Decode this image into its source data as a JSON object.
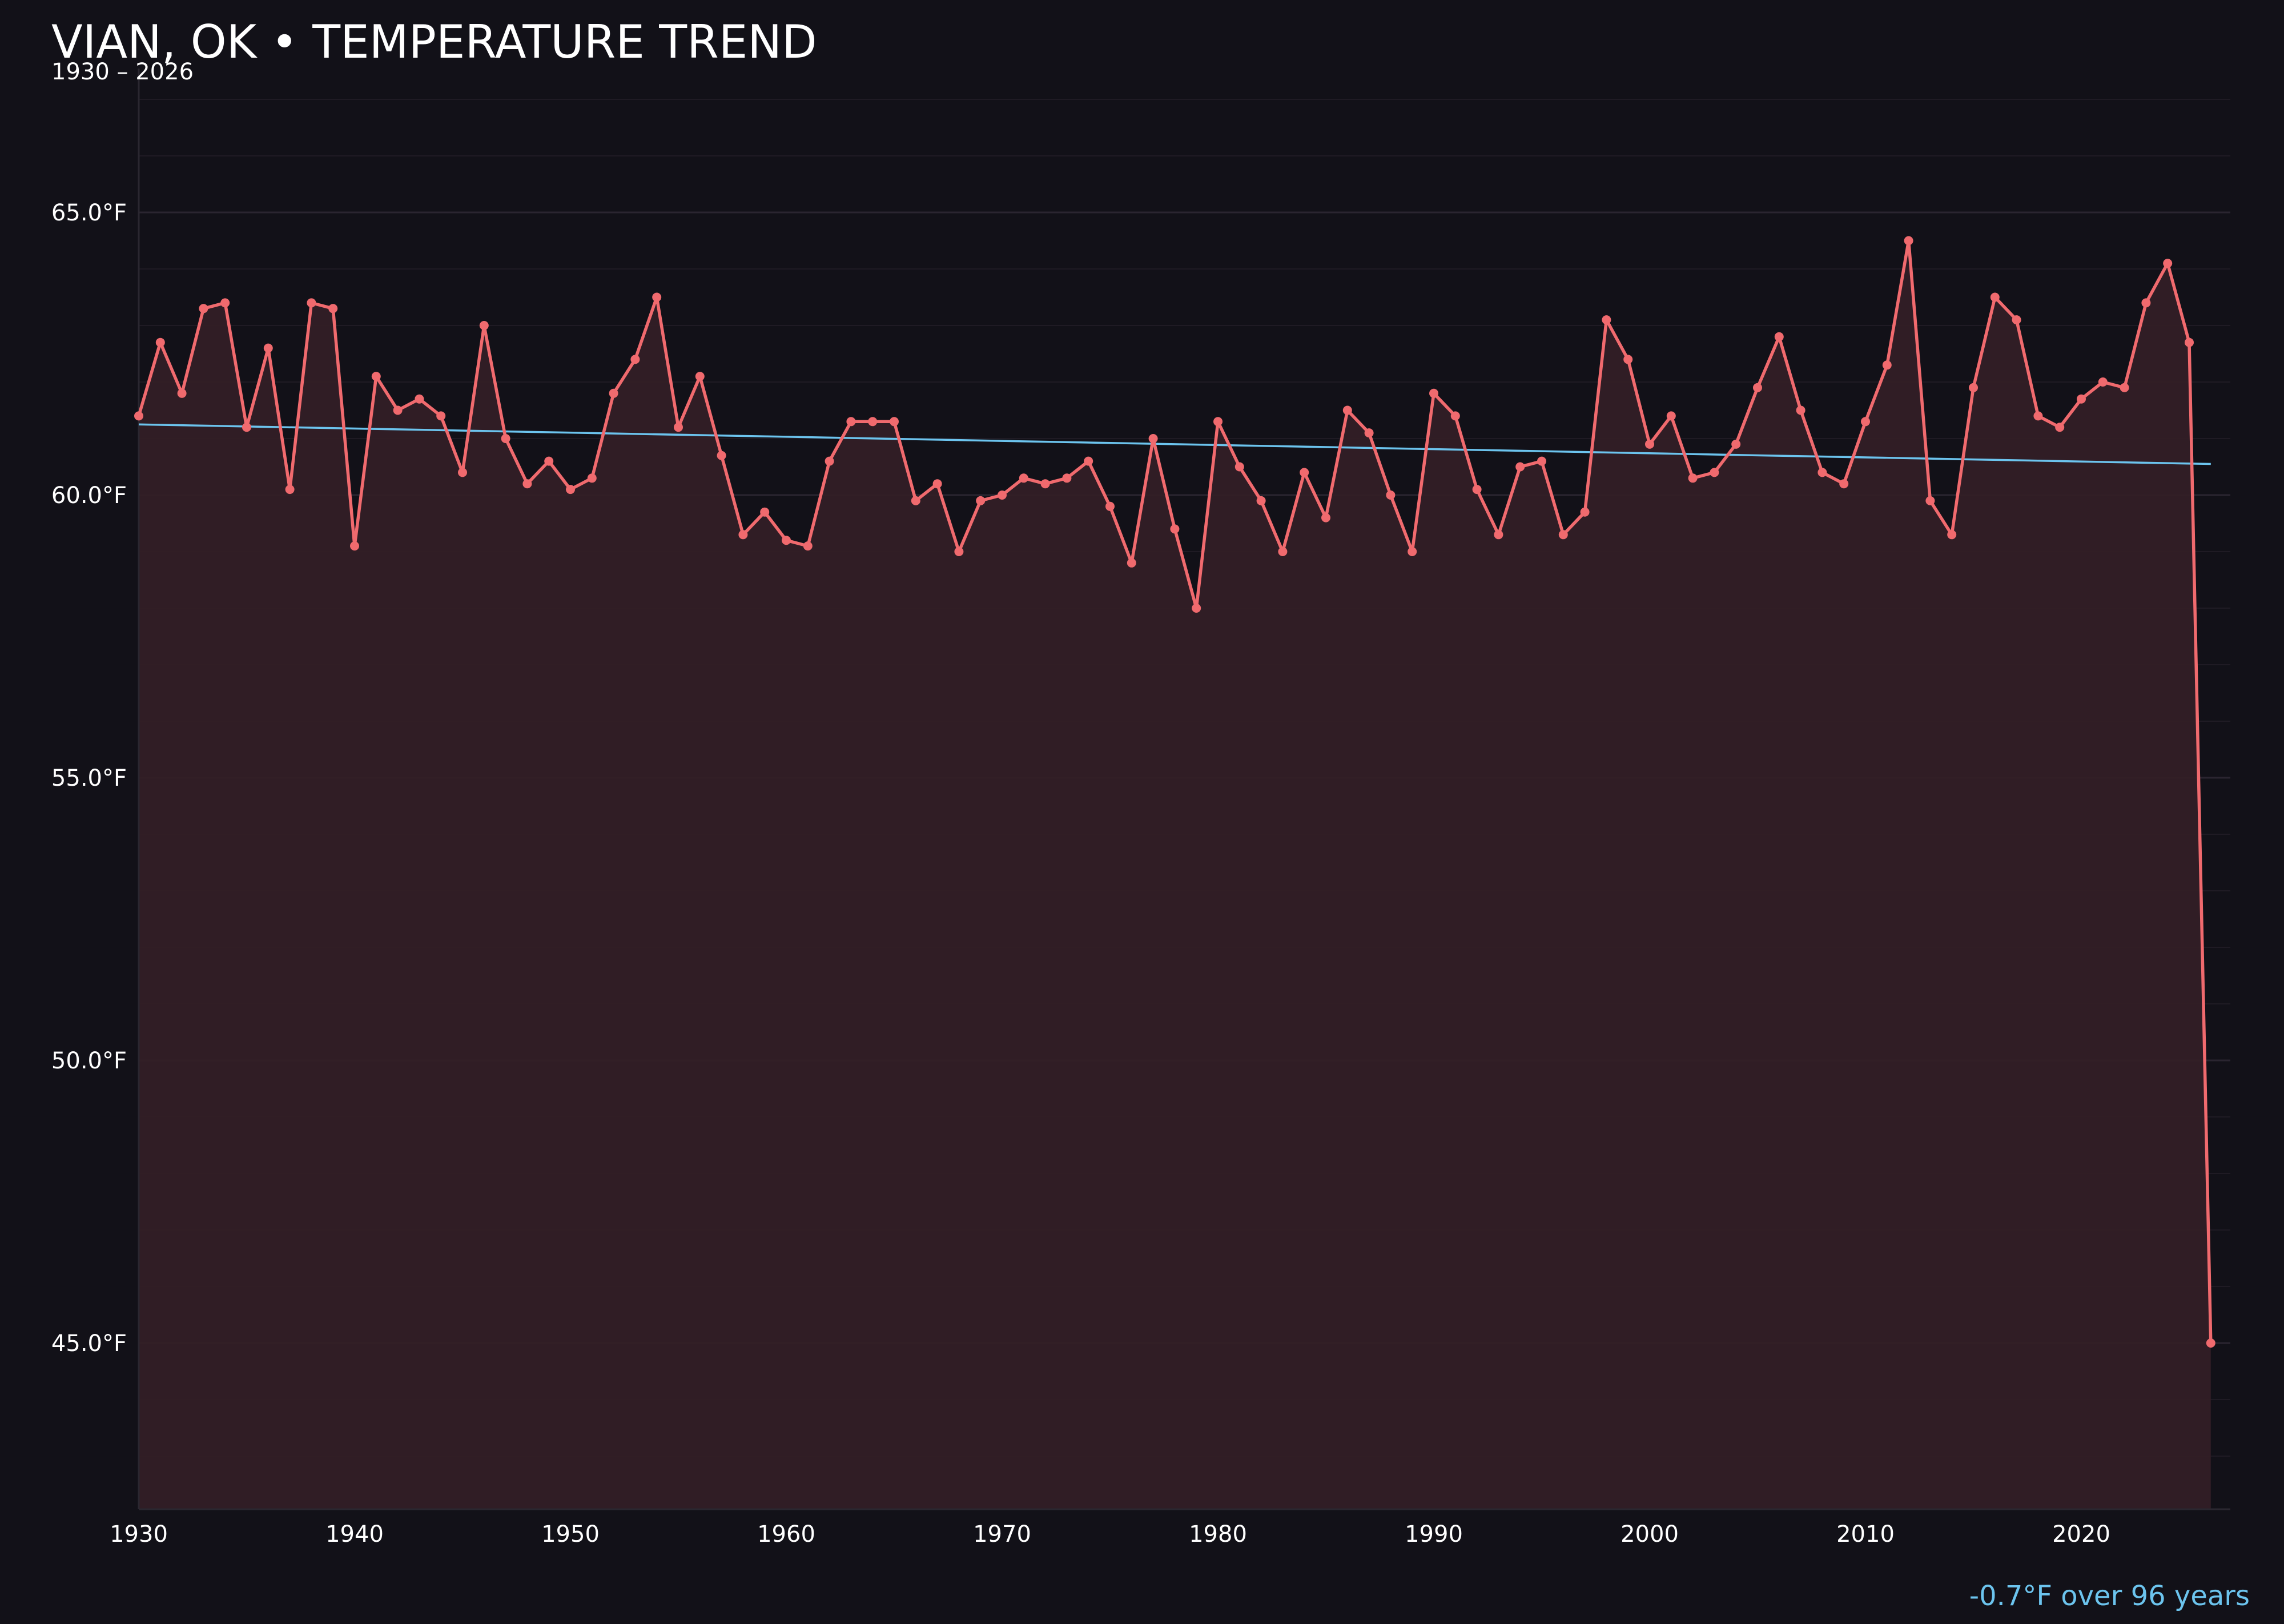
{
  "header": {
    "title": "VIAN, OK • TEMPERATURE TREND",
    "subtitle": "1930 – 2026"
  },
  "footer": {
    "trend_note": "-0.7°F over 96 years"
  },
  "colors": {
    "background": "#121118",
    "series": "#f06a6e",
    "fill": "#331f26",
    "trend": "#6cc4ee",
    "grid": "#231e26",
    "text": "#ffffff"
  },
  "chart_data": {
    "type": "line",
    "title": "VIAN, OK • TEMPERATURE TREND",
    "subtitle": "1930 – 2026",
    "xlabel": "",
    "ylabel": "",
    "xlim": [
      1930,
      2027
    ],
    "ylim": [
      42.0,
      67.0
    ],
    "x_ticks": [
      1930,
      1940,
      1950,
      1960,
      1970,
      1980,
      1990,
      2000,
      2010,
      2020
    ],
    "y_ticks": [
      45.0,
      50.0,
      55.0,
      60.0,
      65.0
    ],
    "y_tick_labels": [
      "45.0°F",
      "50.0°F",
      "55.0°F",
      "60.0°F",
      "65.0°F"
    ],
    "grid": true,
    "area_fill": true,
    "series": [
      {
        "x": [
          1930,
          1931,
          1932,
          1933,
          1934,
          1935,
          1936,
          1937,
          1938,
          1939,
          1940,
          1941,
          1942,
          1943,
          1944,
          1945,
          1946,
          1947,
          1948,
          1949,
          1950,
          1951,
          1952,
          1953,
          1954,
          1955,
          1956,
          1957,
          1958,
          1959,
          1960,
          1961,
          1962,
          1963,
          1964,
          1965,
          1966,
          1967,
          1968,
          1969,
          1970,
          1971,
          1972,
          1973,
          1974,
          1975,
          1976,
          1977,
          1978,
          1979,
          1980,
          1981,
          1982,
          1983,
          1984,
          1985,
          1986,
          1987,
          1988,
          1989,
          1990,
          1991,
          1992,
          1993,
          1994,
          1995,
          1996,
          1997,
          1998,
          1999,
          2000,
          2001,
          2002,
          2003,
          2004,
          2005,
          2006,
          2007,
          2008,
          2009,
          2010,
          2011,
          2012,
          2013,
          2014,
          2015,
          2016,
          2017,
          2018,
          2019,
          2020,
          2021,
          2022,
          2023,
          2024,
          2025,
          2026
        ],
        "values": [
          61.4,
          62.7,
          61.8,
          63.3,
          63.4,
          61.2,
          62.6,
          60.1,
          63.4,
          63.3,
          59.1,
          62.1,
          61.5,
          61.7,
          61.4,
          60.4,
          63.0,
          61.0,
          60.2,
          60.6,
          60.1,
          60.3,
          61.8,
          62.4,
          63.5,
          61.2,
          62.1,
          60.7,
          59.3,
          59.7,
          59.2,
          59.1,
          60.6,
          61.3,
          61.3,
          61.3,
          59.9,
          60.2,
          59.0,
          59.9,
          60.0,
          60.3,
          60.2,
          60.3,
          60.6,
          59.8,
          58.8,
          61.0,
          59.4,
          58.0,
          61.3,
          60.5,
          59.9,
          59.0,
          60.4,
          59.6,
          61.5,
          61.1,
          60.0,
          59.0,
          61.8,
          61.4,
          60.1,
          59.3,
          60.5,
          60.6,
          59.3,
          59.7,
          63.1,
          62.4,
          60.9,
          61.4,
          60.3,
          60.4,
          60.9,
          61.9,
          62.8,
          61.5,
          60.4,
          60.2,
          61.3,
          62.3,
          64.5,
          59.9,
          59.3,
          61.9,
          63.5,
          63.1,
          61.4,
          61.2,
          61.7,
          62.0,
          61.9,
          63.4,
          64.1,
          62.7,
          45.0
        ]
      }
    ],
    "trend_line": {
      "x": [
        1930,
        2026
      ],
      "values": [
        61.25,
        60.55
      ]
    },
    "annotation": "-0.7°F over 96 years"
  }
}
